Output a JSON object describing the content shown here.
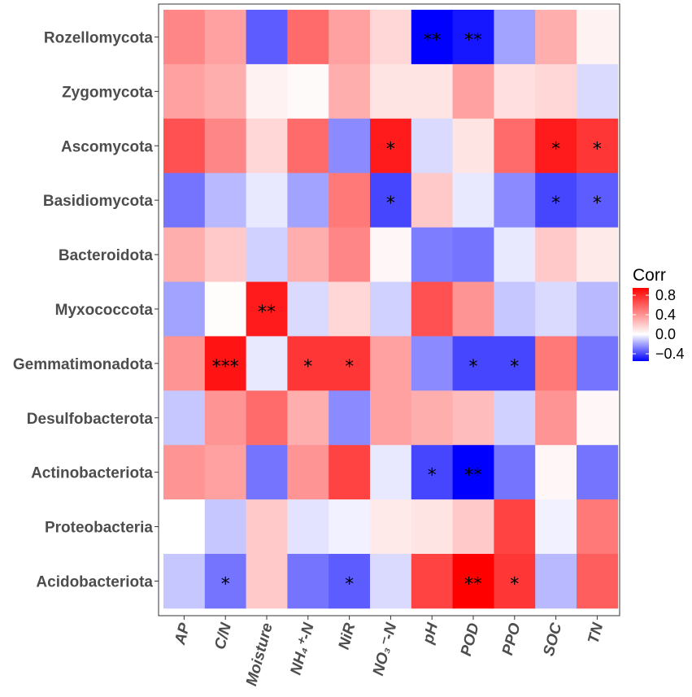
{
  "chart_data": {
    "type": "heatmap",
    "rows": [
      "Rozellomycota",
      "Zygomycota",
      "Ascomycota",
      "Basidiomycota",
      "Bacteroidota",
      "Myxococcota",
      "Gemmatimonadota",
      "Desulfobacterota",
      "Actinobacteriota",
      "Proteobacteria",
      "Acidobacteriota"
    ],
    "columns": [
      "AP",
      "C/N",
      "Moisture",
      "NH₄⁺-N",
      "NiR",
      "NO₃⁻-N",
      "pH",
      "POD",
      "PPO",
      "SOC",
      "TN"
    ],
    "values": [
      [
        0.45,
        0.35,
        -0.35,
        0.55,
        0.35,
        0.15,
        -0.55,
        -0.5,
        -0.2,
        0.3,
        0.05
      ],
      [
        0.35,
        0.3,
        0.05,
        0.02,
        0.3,
        0.1,
        0.1,
        0.35,
        0.12,
        0.15,
        -0.08
      ],
      [
        0.65,
        0.45,
        0.15,
        0.55,
        -0.25,
        0.85,
        -0.08,
        0.1,
        0.55,
        0.85,
        0.75
      ],
      [
        -0.3,
        -0.15,
        -0.05,
        -0.2,
        0.5,
        -0.4,
        0.2,
        -0.05,
        -0.25,
        -0.4,
        -0.35
      ],
      [
        0.3,
        0.2,
        -0.1,
        0.3,
        0.45,
        0.03,
        -0.28,
        -0.3,
        -0.05,
        0.2,
        0.08
      ],
      [
        -0.2,
        0.01,
        0.85,
        -0.08,
        0.15,
        -0.1,
        0.65,
        0.4,
        -0.12,
        -0.08,
        -0.15
      ],
      [
        0.4,
        0.88,
        -0.05,
        0.75,
        0.75,
        0.35,
        -0.25,
        -0.4,
        -0.4,
        0.5,
        -0.3
      ],
      [
        -0.12,
        0.4,
        0.55,
        0.3,
        -0.25,
        0.35,
        0.3,
        0.25,
        -0.1,
        0.4,
        0.03
      ],
      [
        0.4,
        0.35,
        -0.3,
        0.4,
        0.7,
        -0.05,
        -0.4,
        -0.55,
        -0.3,
        0.03,
        -0.3
      ],
      [
        0.0,
        -0.12,
        0.2,
        -0.06,
        -0.03,
        0.08,
        0.1,
        0.2,
        0.7,
        -0.03,
        0.5
      ],
      [
        -0.12,
        -0.3,
        0.2,
        -0.3,
        -0.35,
        -0.08,
        0.7,
        0.95,
        0.75,
        -0.15,
        0.6
      ]
    ],
    "significance": [
      [
        "",
        "",
        "",
        "",
        "",
        "",
        "**",
        "**",
        "",
        "",
        ""
      ],
      [
        "",
        "",
        "",
        "",
        "",
        "",
        "",
        "",
        "",
        "",
        ""
      ],
      [
        "",
        "",
        "",
        "",
        "",
        "*",
        "",
        "",
        "",
        "*",
        "*"
      ],
      [
        "",
        "",
        "",
        "",
        "",
        "*",
        "",
        "",
        "",
        "*",
        "*"
      ],
      [
        "",
        "",
        "",
        "",
        "",
        "",
        "",
        "",
        "",
        "",
        ""
      ],
      [
        "",
        "",
        "**",
        "",
        "",
        "",
        "",
        "",
        "",
        "",
        ""
      ],
      [
        "",
        "***",
        "",
        "*",
        "*",
        "",
        "",
        "*",
        "*",
        "",
        ""
      ],
      [
        "",
        "",
        "",
        "",
        "",
        "",
        "",
        "",
        "",
        "",
        ""
      ],
      [
        "",
        "",
        "",
        "",
        "",
        "",
        "*",
        "**",
        "",
        "",
        ""
      ],
      [
        "",
        "",
        "",
        "",
        "",
        "",
        "",
        "",
        "",
        "",
        ""
      ],
      [
        "",
        "*",
        "",
        "",
        "*",
        "",
        "",
        "**",
        "*",
        "",
        ""
      ]
    ],
    "color_scale": {
      "low": "#0000FF",
      "mid": "#FFFFFF",
      "high": "#FF0000",
      "min": -0.55,
      "max": 0.95
    },
    "legend": {
      "title": "Corr",
      "ticks": [
        "0.8",
        "0.4",
        "0.0",
        "−0.4"
      ],
      "tick_values": [
        0.8,
        0.4,
        0.0,
        -0.4
      ],
      "position": "right"
    },
    "grid": false
  }
}
